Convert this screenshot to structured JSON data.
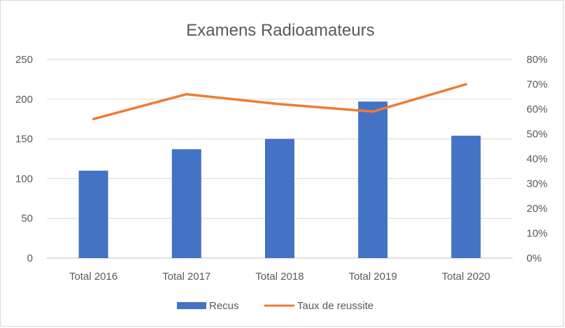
{
  "chart_data": {
    "type": "bar",
    "title": "Examens Radioamateurs",
    "categories": [
      "Total 2016",
      "Total 2017",
      "Total 2018",
      "Total 2019",
      "Total 2020"
    ],
    "series": [
      {
        "name": "Recus",
        "type": "bar",
        "axis": "left",
        "color": "#4472c4",
        "values": [
          110,
          137,
          150,
          197,
          154
        ]
      },
      {
        "name": "Taux de reussite",
        "type": "line",
        "axis": "right",
        "color": "#ed7d31",
        "values": [
          0.56,
          0.66,
          0.62,
          0.59,
          0.7
        ]
      }
    ],
    "y_left": {
      "min": 0,
      "max": 250,
      "ticks": [
        "0",
        "50",
        "100",
        "150",
        "200",
        "250"
      ]
    },
    "y_right": {
      "min": 0,
      "max": 0.8,
      "ticks": [
        "0%",
        "10%",
        "20%",
        "30%",
        "40%",
        "50%",
        "60%",
        "70%",
        "80%"
      ]
    },
    "grid": true,
    "legend_position": "bottom"
  }
}
